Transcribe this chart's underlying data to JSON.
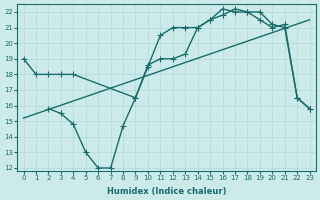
{
  "xlabel": "Humidex (Indice chaleur)",
  "ylabel": "",
  "xlim": [
    -0.5,
    23.5
  ],
  "ylim": [
    11.8,
    22.5
  ],
  "yticks": [
    12,
    13,
    14,
    15,
    16,
    17,
    18,
    19,
    20,
    21,
    22
  ],
  "xticks": [
    0,
    1,
    2,
    3,
    4,
    5,
    6,
    7,
    8,
    9,
    10,
    11,
    12,
    13,
    14,
    15,
    16,
    17,
    18,
    19,
    20,
    21,
    22,
    23
  ],
  "bg_color": "#cceaea",
  "grid_color": "#b0d8d8",
  "line_color": "#1a6b6b",
  "line1_x": [
    0,
    1,
    2,
    3,
    4,
    9,
    10,
    11,
    12,
    13,
    14,
    15,
    16,
    17,
    18,
    19,
    20,
    21,
    22,
    23
  ],
  "line1_y": [
    19.0,
    18.0,
    18.0,
    18.0,
    18.0,
    16.5,
    18.6,
    19.0,
    19.0,
    19.3,
    21.0,
    21.5,
    21.8,
    22.2,
    22.0,
    22.0,
    21.2,
    21.0,
    16.5,
    15.8
  ],
  "line2_x": [
    0,
    23
  ],
  "line2_y": [
    15.2,
    21.5
  ],
  "line3_x": [
    2,
    3,
    4,
    5,
    6,
    7,
    8,
    9,
    10,
    11,
    12,
    13,
    14,
    15,
    16,
    17,
    18,
    19,
    20,
    21,
    22,
    23
  ],
  "line3_y": [
    15.8,
    15.5,
    14.8,
    13.0,
    12.0,
    12.0,
    14.7,
    16.5,
    18.5,
    20.5,
    21.0,
    21.0,
    21.0,
    21.5,
    22.2,
    22.0,
    22.0,
    21.5,
    21.0,
    21.2,
    16.5,
    15.8
  ],
  "marker_size": 2.5,
  "linewidth": 1.0
}
